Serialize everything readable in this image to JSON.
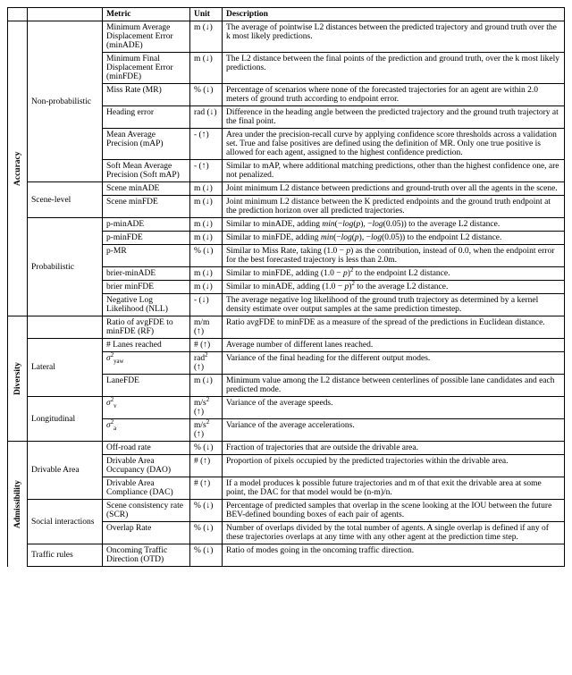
{
  "header": {
    "metric": "Metric",
    "unit": "Unit",
    "desc": "Description"
  },
  "groups": {
    "g1": {
      "label": "Accuracy"
    },
    "g2": {
      "label": "Diversity"
    },
    "g3": {
      "label": "Admissibility"
    }
  },
  "sub": {
    "s1": "Non-probabilistic",
    "s2": "Scene-level",
    "s3": "Probabilistic",
    "s4": "Lateral",
    "s5": "Longitudinal",
    "s6": "Drivable Area",
    "s7": "Social interactions",
    "s8": "Traffic rules"
  },
  "r": {
    "a1m": "Minimum Average Displacement Error (minADE)",
    "a1u": "m (↓)",
    "a1d": "The average of pointwise L2 distances between the predicted trajectory and ground truth over the k most likely predictions.",
    "a2m": "Minimum Final Displacement Error (minFDE)",
    "a2u": "m (↓)",
    "a2d": "The L2 distance between the final points of the prediction and ground truth, over the k most likely predictions.",
    "a3m": "Miss Rate (MR)",
    "a3u": "% (↓)",
    "a3d": "Percentage of scenarios where none of the forecasted trajectories for an agent are within 2.0 meters of ground truth according to endpoint error.",
    "a4m": "Heading error",
    "a4u": "rad (↓)",
    "a4d": "Difference in the heading angle between the predicted trajectory and the ground truth trajectory at the final point.",
    "a5m": "Mean Average Precision (mAP)",
    "a5u": "- (↑)",
    "a5d": "Area under the precision-recall curve by applying confidence score thresholds across a validation set. True and false positives are defined using the definition of MR. Only one true positive is allowed for each agent, assigned to the highest confidence prediction.",
    "a6m": "Soft Mean Average Precision (Soft mAP)",
    "a6u": "- (↑)",
    "a6d": "Similar to mAP, where additional matching predictions, other than the highest confidence one, are not penalized.",
    "b1m": "Scene minADE",
    "b1u": "m (↓)",
    "b1d": "Joint minimum L2 distance between predictions and ground-truth over all the agents in the scene.",
    "b2m": "Scene minFDE",
    "b2u": "m (↓)",
    "b2d": "Joint minimum L2 distance between the K predicted endpoints and the ground truth endpoint at the prediction horizon over all predicted trajectories.",
    "c1m": "p-minADE",
    "c1u": "m (↓)",
    "c2m": "p-minFDE",
    "c2u": "m (↓)",
    "c3m": "p-MR",
    "c3u": "% (↓)",
    "c4m": "brier-minADE",
    "c4u": "m (↓)",
    "c5m": "brier minFDE",
    "c5u": "m (↓)",
    "c6m": "Negative Log Likelihood (NLL)",
    "c6u": "- (↓)",
    "c6d": "The average negative log likelihood of the ground truth trajectory as determined by a kernel density estimate over output samples at the same prediction timestep.",
    "d1m": "Ratio of avgFDE to minFDE (RF)",
    "d1u": "m/m (↑)",
    "d1d": "Ratio avgFDE to minFDE as a measure of the spread of the predictions in Euclidean distance.",
    "d2m": "# Lanes reached",
    "d2u": "# (↑)",
    "d2d": "Average number of different lanes reached.",
    "d3d": "Variance of the final heading for the different output modes.",
    "d4m": "LaneFDE",
    "d4u": "m (↓)",
    "d4d": "Minimum value among the L2 distance between centerlines of possible lane candidates and each predicted mode.",
    "d5d": "Variance of the average speeds.",
    "d6d": "Variance of the average accelerations.",
    "e1m": "Off-road rate",
    "e1u": "% (↓)",
    "e1d": "Fraction of trajectories that are outside the drivable area.",
    "e2m": "Drivable Area Occupancy (DAO)",
    "e2u": "# (↑)",
    "e2d": "Proportion of pixels occupied by the predicted trajectories within the drivable area.",
    "e3m": "Drivable Area Compliance (DAC)",
    "e3u": "# (↑)",
    "e3d": "If a model produces k possible future trajectories and m of that exit the drivable area at some point, the DAC for that model would be (n-m)/n.",
    "f1m": "Scene consistency rate (SCR)",
    "f1u": "% (↓)",
    "f1d": "Percentage of predicted samples that overlap in the scene looking at the IOU between the future BEV-defined bounding boxes of each pair of agents.",
    "f2m": "Overlap Rate",
    "f2u": "% (↓)",
    "f2d": "Number of overlaps divided by the total number of agents. A single overlap is defined if any of these trajectories overlaps at any time with any other agent at the prediction time step.",
    "g1m": "Oncoming Traffic Direction (OTD)",
    "g1u": "% (↓)",
    "g1d": "Ratio of modes going in the oncoming traffic direction."
  }
}
